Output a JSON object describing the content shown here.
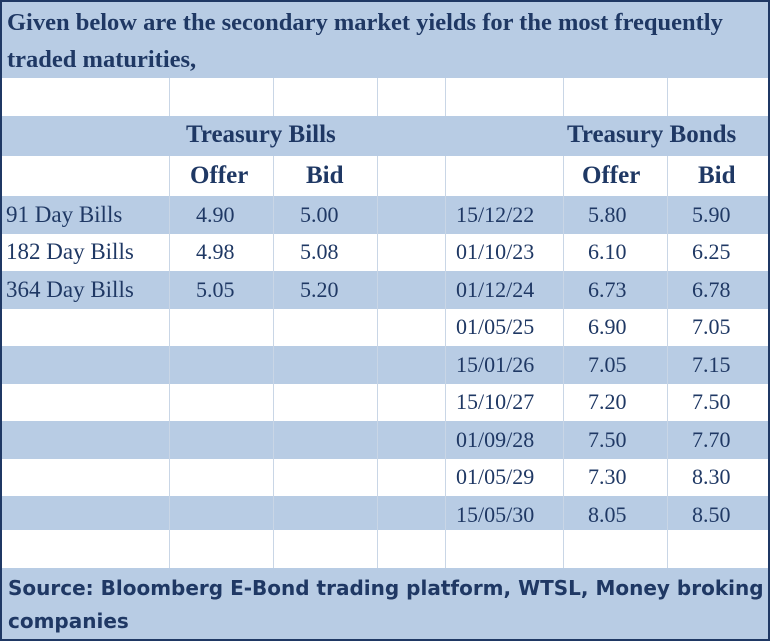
{
  "title": "Given below are the secondary market yields for the most frequently traded maturities,",
  "headers": {
    "bills_group": "Treasury Bills",
    "bonds_group": "Treasury Bonds",
    "bills_offer": "Offer",
    "bills_bid": "Bid",
    "bonds_offer": "Offer",
    "bonds_bid": "Bid"
  },
  "bills": [
    {
      "name": "91 Day Bills",
      "offer": "4.90",
      "bid": "5.00"
    },
    {
      "name": "182 Day Bills",
      "offer": "4.98",
      "bid": "5.08"
    },
    {
      "name": "364 Day Bills",
      "offer": "5.05",
      "bid": "5.20"
    }
  ],
  "bonds": [
    {
      "maturity": "15/12/22",
      "offer": "5.80",
      "bid": "5.90"
    },
    {
      "maturity": "01/10/23",
      "offer": "6.10",
      "bid": "6.25"
    },
    {
      "maturity": "01/12/24",
      "offer": "6.73",
      "bid": "6.78"
    },
    {
      "maturity": "01/05/25",
      "offer": "6.90",
      "bid": "7.05"
    },
    {
      "maturity": "15/01/26",
      "offer": "7.05",
      "bid": "7.15"
    },
    {
      "maturity": "15/10/27",
      "offer": "7.20",
      "bid": "7.50"
    },
    {
      "maturity": "01/09/28",
      "offer": "7.50",
      "bid": "7.70"
    },
    {
      "maturity": "01/05/29",
      "offer": "7.30",
      "bid": "8.30"
    },
    {
      "maturity": "15/05/30",
      "offer": "8.05",
      "bid": "8.50"
    }
  ],
  "source": "Source: Bloomberg E-Bond trading platform, WTSL, Money broking companies",
  "colors": {
    "band": "#b8cce4",
    "text": "#1f3864"
  }
}
